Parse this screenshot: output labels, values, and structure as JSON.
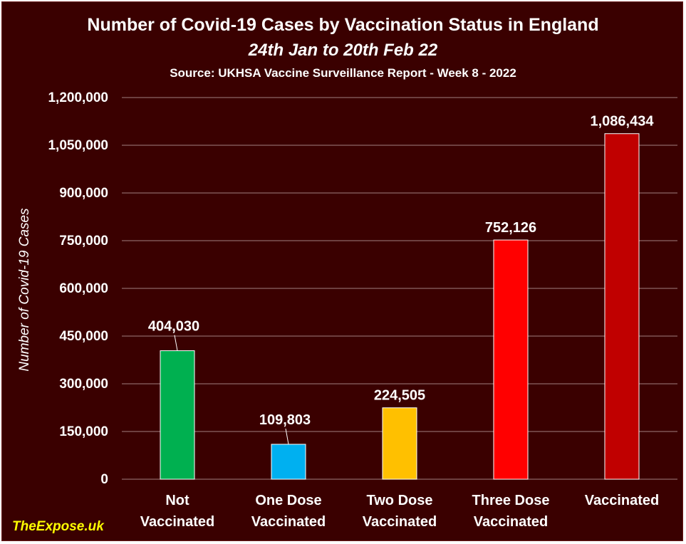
{
  "chart_data": {
    "type": "bar",
    "title": "Number of Covid-19 Cases by Vaccination Status in England",
    "subtitle": "24th Jan to 20th Feb 22",
    "source": "Source: UKHSA Vaccine Surveillance Report - Week 8 - 2022",
    "xlabel": "",
    "ylabel": "Number of Covid-19 Cases",
    "ylim": [
      0,
      1200000
    ],
    "yticks": [
      0,
      150000,
      300000,
      450000,
      600000,
      750000,
      900000,
      1050000,
      1200000
    ],
    "ytick_labels": [
      "0",
      "150,000",
      "300,000",
      "450,000",
      "600,000",
      "750,000",
      "900,000",
      "1,050,000",
      "1,200,000"
    ],
    "grid": true,
    "categories": [
      [
        "Not",
        "Vaccinated"
      ],
      [
        "One Dose",
        "Vaccinated"
      ],
      [
        "Two Dose",
        "Vaccinated"
      ],
      [
        "Three Dose",
        "Vaccinated"
      ],
      [
        "Vaccinated"
      ]
    ],
    "values": [
      404030,
      109803,
      224505,
      752126,
      1086434
    ],
    "value_labels": [
      "404,030",
      "109,803",
      "224,505",
      "752,126",
      "1,086,434"
    ],
    "colors": [
      "#00b050",
      "#00b0f0",
      "#ffc000",
      "#ff0000",
      "#c00000"
    ]
  },
  "watermark": "TheExpose.uk",
  "style": {
    "background": "#3a0000",
    "text_color": "#ffffff",
    "grid_color": "#a08080",
    "watermark_color": "#ffff00"
  }
}
